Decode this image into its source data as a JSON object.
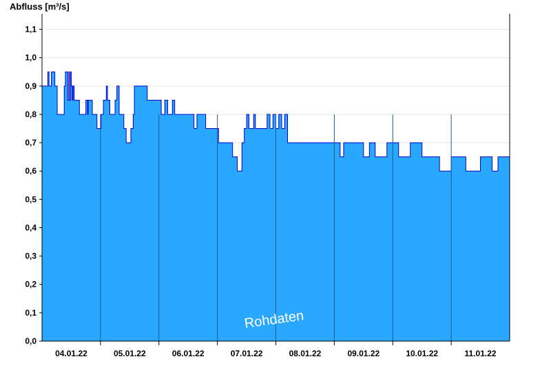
{
  "chart_data": {
    "type": "area",
    "ylabel": "Abfluss [m³/s]",
    "watermark": "Rohdaten",
    "ylim": [
      0,
      1.15
    ],
    "xlim": [
      3.5,
      11.5
    ],
    "yticks": [
      {
        "v": 0.0,
        "label": "0,0"
      },
      {
        "v": 0.1,
        "label": "0,1"
      },
      {
        "v": 0.2,
        "label": "0,2"
      },
      {
        "v": 0.3,
        "label": "0,3"
      },
      {
        "v": 0.4,
        "label": "0,4"
      },
      {
        "v": 0.5,
        "label": "0,5"
      },
      {
        "v": 0.6,
        "label": "0,6"
      },
      {
        "v": 0.7,
        "label": "0,7"
      },
      {
        "v": 0.8,
        "label": "0,8"
      },
      {
        "v": 0.9,
        "label": "0,9"
      },
      {
        "v": 1.0,
        "label": "1,0"
      },
      {
        "v": 1.1,
        "label": "1,1"
      }
    ],
    "xticks": [
      {
        "v": 4,
        "label": "04.01.22"
      },
      {
        "v": 5,
        "label": "05.01.22"
      },
      {
        "v": 6,
        "label": "06.01.22"
      },
      {
        "v": 7,
        "label": "07.01.22"
      },
      {
        "v": 8,
        "label": "08.01.22"
      },
      {
        "v": 9,
        "label": "09.01.22"
      },
      {
        "v": 10,
        "label": "10.01.22"
      },
      {
        "v": 11,
        "label": "11.01.22"
      }
    ],
    "day_boundaries": [
      4.5,
      5.5,
      6.5,
      7.5,
      8.5,
      9.5,
      10.5
    ],
    "grid": true,
    "colors": {
      "fill": "#2aa8ff",
      "line": "#0000cc",
      "grid": "#e6e6e6",
      "axis": "#000000"
    },
    "series": [
      {
        "x": [
          3.5,
          3.6,
          3.6,
          3.62,
          3.62,
          3.66,
          3.66,
          3.72,
          3.72,
          3.76,
          3.76,
          3.88,
          3.88,
          3.9,
          3.9,
          3.94,
          3.94,
          3.96,
          3.96,
          3.97,
          3.97,
          3.99,
          3.99,
          4.0,
          4.0,
          4.02,
          4.02,
          4.03,
          4.03,
          4.05,
          4.05,
          4.14,
          4.14,
          4.25,
          4.25,
          4.28,
          4.28,
          4.29,
          4.29,
          4.36,
          4.36,
          4.44,
          4.44,
          4.51,
          4.51,
          4.55,
          4.55,
          4.6,
          4.6,
          4.62,
          4.62,
          4.66,
          4.66,
          4.75,
          4.75,
          4.78,
          4.78,
          4.82,
          4.82,
          4.9,
          4.9,
          4.94,
          4.94,
          5.02,
          5.02,
          5.06,
          5.06,
          5.08,
          5.08,
          5.3,
          5.3,
          5.54,
          5.54,
          5.6,
          5.6,
          5.65,
          5.65,
          5.73,
          5.73,
          5.77,
          5.77,
          5.9,
          5.9,
          6.1,
          6.1,
          6.15,
          6.15,
          6.3,
          6.3,
          6.52,
          6.52,
          6.76,
          6.76,
          6.84,
          6.84,
          6.92,
          6.92,
          6.96,
          6.96,
          7.0,
          7.0,
          7.04,
          7.04,
          7.12,
          7.12,
          7.15,
          7.15,
          7.35,
          7.35,
          7.4,
          7.4,
          7.45,
          7.45,
          7.5,
          7.5,
          7.55,
          7.55,
          7.6,
          7.6,
          7.65,
          7.65,
          7.7,
          7.7,
          8.6,
          8.6,
          8.66,
          8.66,
          8.7,
          8.7,
          9.0,
          9.0,
          9.1,
          9.1,
          9.2,
          9.2,
          9.4,
          9.4,
          9.6,
          9.6,
          9.8,
          9.8,
          10.0,
          10.0,
          10.3,
          10.3,
          10.5,
          10.5,
          10.75,
          10.75,
          11.0,
          11.0,
          11.2,
          11.2,
          11.3,
          11.3,
          11.5
        ],
        "y": [
          0.9,
          0.9,
          0.95,
          0.95,
          0.9,
          0.9,
          0.95,
          0.95,
          0.9,
          0.9,
          0.8,
          0.8,
          0.9,
          0.9,
          0.95,
          0.95,
          0.85,
          0.85,
          0.95,
          0.95,
          0.85,
          0.85,
          0.95,
          0.95,
          0.9,
          0.9,
          0.85,
          0.85,
          0.9,
          0.9,
          0.85,
          0.85,
          0.8,
          0.8,
          0.85,
          0.85,
          0.8,
          0.8,
          0.85,
          0.85,
          0.8,
          0.8,
          0.75,
          0.75,
          0.8,
          0.8,
          0.85,
          0.85,
          0.9,
          0.9,
          0.85,
          0.85,
          0.8,
          0.8,
          0.85,
          0.85,
          0.9,
          0.9,
          0.8,
          0.8,
          0.75,
          0.75,
          0.7,
          0.7,
          0.75,
          0.75,
          0.8,
          0.8,
          0.9,
          0.9,
          0.85,
          0.85,
          0.8,
          0.8,
          0.85,
          0.85,
          0.8,
          0.8,
          0.85,
          0.85,
          0.8,
          0.8,
          0.8,
          0.8,
          0.75,
          0.75,
          0.8,
          0.8,
          0.75,
          0.75,
          0.7,
          0.7,
          0.65,
          0.65,
          0.6,
          0.6,
          0.7,
          0.7,
          0.75,
          0.75,
          0.8,
          0.8,
          0.75,
          0.75,
          0.8,
          0.8,
          0.75,
          0.75,
          0.8,
          0.8,
          0.75,
          0.75,
          0.8,
          0.8,
          0.75,
          0.75,
          0.8,
          0.8,
          0.75,
          0.75,
          0.8,
          0.8,
          0.7,
          0.7,
          0.65,
          0.65,
          0.7,
          0.7,
          0.7,
          0.7,
          0.65,
          0.65,
          0.7,
          0.7,
          0.65,
          0.65,
          0.7,
          0.7,
          0.65,
          0.65,
          0.7,
          0.7,
          0.65,
          0.65,
          0.6,
          0.6,
          0.65,
          0.65,
          0.6,
          0.6,
          0.65,
          0.65,
          0.6,
          0.6,
          0.65,
          0.65
        ]
      }
    ]
  }
}
